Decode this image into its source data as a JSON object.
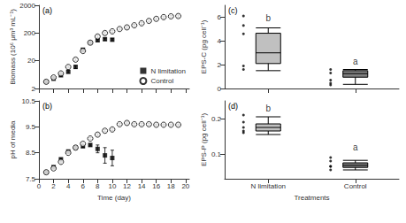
{
  "chart_data": [
    {
      "type": "scatter",
      "log": "y",
      "legend": "lower right",
      "grid": false,
      "tick_labels": "y",
      "ylabel": "Biomass (10⁶ μm³ mL⁻¹)",
      "xlim": [
        0,
        20.5
      ],
      "xticks": [
        0,
        2,
        4,
        6,
        8,
        10,
        12,
        14,
        16,
        18,
        20
      ],
      "ylim": [
        2,
        2000
      ],
      "yticks": [
        2,
        20,
        200,
        2000
      ],
      "annotations": [
        {
          "text": "(a)"
        }
      ],
      "series": [
        {
          "name": "N limitation",
          "color": "black",
          "marker": "square",
          "x": [
            1,
            2,
            3,
            4,
            5,
            6,
            7,
            8,
            9,
            10
          ],
          "values": [
            3.5,
            4.5,
            6,
            8,
            12,
            50,
            90,
            110,
            120,
            115
          ],
          "errors": [
            0.3,
            0.3,
            0.5,
            0.8,
            1.5,
            6,
            8,
            10,
            11,
            10
          ]
        },
        {
          "name": "Control",
          "color": "black",
          "marker": "open circle",
          "x": [
            1,
            2,
            3,
            4,
            5,
            6,
            7,
            8,
            9,
            10,
            11,
            12,
            13,
            14,
            15,
            16,
            17,
            18,
            19
          ],
          "values": [
            3.5,
            5,
            7,
            12,
            22,
            45,
            90,
            150,
            200,
            230,
            280,
            320,
            380,
            450,
            550,
            650,
            750,
            800,
            820
          ],
          "errors": [
            0.3,
            0.5,
            0.8,
            1,
            2,
            4,
            8,
            15,
            20,
            22,
            25,
            28,
            32,
            40,
            50,
            60,
            70,
            75,
            78
          ]
        }
      ]
    },
    {
      "type": "scatter",
      "grid": false,
      "xlabel": "Time (day)",
      "ylabel": "pH of media",
      "xlim": [
        0,
        20.5
      ],
      "xticks": [
        0,
        2,
        4,
        6,
        8,
        10,
        12,
        14,
        16,
        18,
        20
      ],
      "ylim": [
        7.5,
        10.5
      ],
      "yticks": [
        7.5,
        8.5,
        9.5,
        10.5
      ],
      "annotations": [
        {
          "text": "(b)"
        }
      ],
      "series": [
        {
          "color": "black",
          "marker": "square",
          "x": [
            1,
            2,
            3,
            4,
            5,
            6,
            7,
            8,
            9,
            10
          ],
          "values": [
            7.75,
            7.95,
            8.25,
            8.55,
            8.7,
            8.75,
            8.8,
            8.65,
            8.4,
            8.3
          ],
          "errors": [
            0.03,
            0.03,
            0.04,
            0.04,
            0.04,
            0.04,
            0.04,
            0.15,
            0.3,
            0.3
          ]
        },
        {
          "color": "black",
          "marker": "open circle",
          "x": [
            1,
            2,
            3,
            4,
            5,
            6,
            7,
            8,
            9,
            10,
            11,
            12,
            13,
            14,
            15,
            16,
            17,
            18,
            19
          ],
          "values": [
            7.75,
            7.9,
            8.15,
            8.5,
            8.7,
            8.85,
            9.05,
            9.2,
            9.35,
            9.4,
            9.6,
            9.65,
            9.6,
            9.6,
            9.6,
            9.58,
            9.58,
            9.58,
            9.58
          ],
          "errors": [
            0.03,
            0.03,
            0.04,
            0.04,
            0.04,
            0.04,
            0.04,
            0.04,
            0.04,
            0.04,
            0.04,
            0.04,
            0.04,
            0.04,
            0.04,
            0.03,
            0.03,
            0.03,
            0.03
          ]
        }
      ]
    },
    {
      "type": "box",
      "grid": false,
      "tick_labels": "y",
      "ylabel": "EPS-C (pg cell⁻¹)",
      "categories": [
        "N limitation",
        "Control"
      ],
      "ylim": [
        0,
        7
      ],
      "yticks": [
        0,
        2,
        4,
        6
      ],
      "annotations": [
        {
          "text": "(c)"
        },
        {
          "text": "b",
          "x": "N limitation",
          "y": 5.5
        },
        {
          "text": "a",
          "x": "Control",
          "y": 1.85
        }
      ],
      "series": [
        {
          "type": "box",
          "colors": [
            "#c0c0c0",
            "#808080"
          ],
          "values": [
            {
              "q1": 2.1,
              "median": 3.0,
              "q3": 4.65,
              "whislo": 1.5,
              "whishi": 5.1
            },
            {
              "q1": 0.95,
              "median": 1.25,
              "q3": 1.5,
              "whislo": 0.35,
              "whishi": 1.6
            }
          ]
        },
        {
          "type": "scatter",
          "color": "black",
          "values": [
            [
              6.1,
              5.3,
              4.6,
              1.9,
              1.6
            ],
            [
              1.6,
              1.3,
              0.7,
              0.45,
              0.3
            ]
          ]
        }
      ]
    },
    {
      "type": "box",
      "grid": false,
      "xlabel": "Treatments",
      "ylabel": "EPS-P (pg cell⁻¹)",
      "categories": [
        "N limitation",
        "Control"
      ],
      "ylim": [
        0.03,
        0.25
      ],
      "yticks": [
        0.1,
        0.2
      ],
      "annotations": [
        {
          "text": "(d)"
        },
        {
          "text": "b",
          "x": "N limitation",
          "y": 0.215
        },
        {
          "text": "a",
          "x": "Control",
          "y": 0.105
        }
      ],
      "series": [
        {
          "type": "box",
          "colors": [
            "#c0c0c0",
            "#808080"
          ],
          "values": [
            {
              "q1": 0.165,
              "median": 0.175,
              "q3": 0.185,
              "whislo": 0.155,
              "whishi": 0.205
            },
            {
              "q1": 0.062,
              "median": 0.068,
              "q3": 0.075,
              "whislo": 0.055,
              "whishi": 0.082
            }
          ]
        },
        {
          "type": "scatter",
          "color": "black",
          "values": [
            [
              0.21,
              0.19,
              0.175,
              0.165,
              0.16
            ],
            [
              0.09,
              0.08,
              0.065,
              0.065,
              0.055
            ]
          ]
        }
      ]
    }
  ]
}
